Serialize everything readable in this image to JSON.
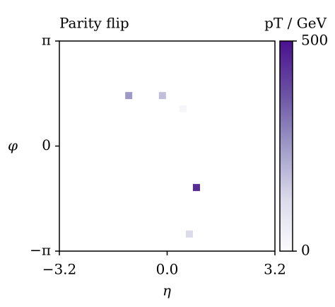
{
  "chart_data": {
    "type": "scatter",
    "title": "Parity flip",
    "x_label": "η",
    "y_label": "φ",
    "x": [
      -1.14,
      -0.14,
      0.47,
      0.87,
      0.66
    ],
    "y": [
      1.51,
      1.51,
      1.11,
      -1.24,
      -2.63
    ],
    "values": [
      250,
      180,
      20,
      450,
      120
    ],
    "xlim": [
      -3.2,
      3.2
    ],
    "xticks": [
      {
        "value": -3.2,
        "label": "−3.2"
      },
      {
        "value": 0,
        "label": "0.0"
      },
      {
        "value": 3.2,
        "label": "3.2"
      }
    ],
    "ylim": [
      -3.14159,
      3.14159
    ],
    "yticks": [
      {
        "value": -3.14159,
        "label": "−π"
      },
      0,
      {
        "value": 3.14159,
        "label": "π"
      }
    ],
    "colorbar": {
      "label": "pT / GeV",
      "clim": [
        0,
        500
      ],
      "ticks": [
        0,
        500
      ],
      "colormap": [
        "#fcfbfd",
        "#dadaeb",
        "#9e9ac8",
        "#6a51a3",
        "#4a1190"
      ]
    },
    "grid": false
  }
}
